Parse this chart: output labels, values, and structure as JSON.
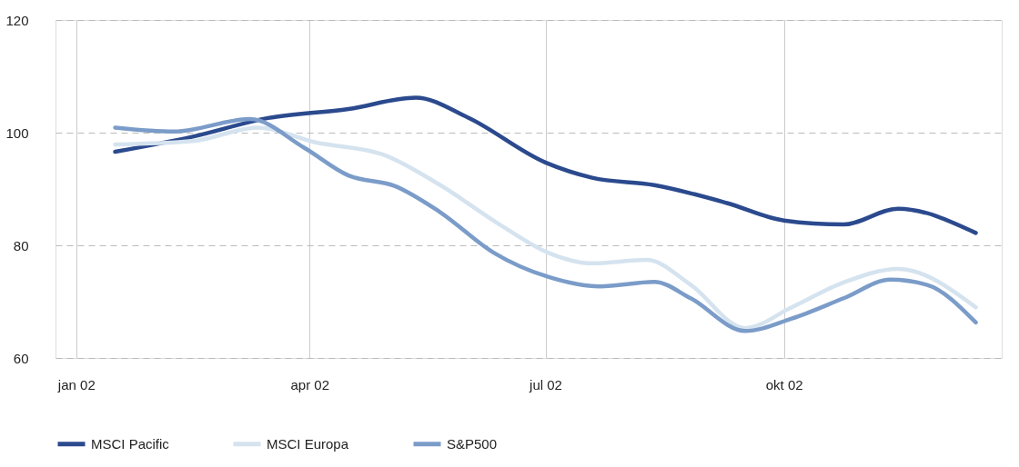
{
  "chart_data": {
    "type": "line",
    "xlim": [
      "2001-12-24",
      "2002-12-24"
    ],
    "xticks": [
      {
        "value": "2002-01-01",
        "label": "jan 02"
      },
      {
        "value": "2002-04-01",
        "label": "apr 02"
      },
      {
        "value": "2002-07-01",
        "label": "jul 02"
      },
      {
        "value": "2002-10-01",
        "label": "okt 02"
      }
    ],
    "ylim": [
      60,
      120
    ],
    "yticks": [
      60,
      80,
      100,
      120
    ],
    "grid": true,
    "legend": "bottom left",
    "line_style": "solid",
    "marker": "none",
    "series": [
      {
        "name": "MSCI Pacific",
        "color": "#2b4a8e",
        "x": [
          "2002-01-16",
          "2002-02-15",
          "2002-03-16",
          "2002-04-16",
          "2002-05-12",
          "2002-06-01",
          "2002-07-01",
          "2002-07-19",
          "2002-08-12",
          "2002-09-09",
          "2002-10-01",
          "2002-10-24",
          "2002-11-14",
          "2002-12-14"
        ],
        "values": [
          96.6,
          99.3,
          102.6,
          104.2,
          106.2,
          102.7,
          94.7,
          92,
          90.7,
          87.5,
          84.4,
          83.7,
          86.5,
          82.2
        ]
      },
      {
        "name": "MSCI Europa",
        "color": "#d5e3ef",
        "x": [
          "2002-01-16",
          "2002-02-15",
          "2002-03-12",
          "2002-04-03",
          "2002-04-30",
          "2002-05-21",
          "2002-06-14",
          "2002-07-02",
          "2002-07-19",
          "2002-08-09",
          "2002-08-26",
          "2002-09-16",
          "2002-10-04",
          "2002-10-24",
          "2002-11-14",
          "2002-12-14"
        ],
        "values": [
          97.9,
          98.5,
          100.9,
          98.3,
          96,
          90.8,
          83.5,
          78.7,
          76.8,
          77.4,
          73,
          65.3,
          69,
          73.4,
          75.8,
          69
        ]
      },
      {
        "name": "S&P500",
        "color": "#7b9cc9",
        "x": [
          "2002-01-16",
          "2002-02-08",
          "2002-03-09",
          "2002-03-30",
          "2002-04-16",
          "2002-05-04",
          "2002-05-21",
          "2002-06-11",
          "2002-07-02",
          "2002-07-22",
          "2002-08-12",
          "2002-08-26",
          "2002-09-16",
          "2002-10-04",
          "2002-10-24",
          "2002-11-11",
          "2002-11-25",
          "2002-12-14"
        ],
        "values": [
          100.9,
          100.2,
          102.4,
          97.3,
          92.4,
          90.5,
          86,
          78.7,
          74.4,
          72.7,
          73.5,
          70.6,
          64.8,
          67,
          70.6,
          73.9,
          73,
          66.3
        ]
      }
    ]
  }
}
